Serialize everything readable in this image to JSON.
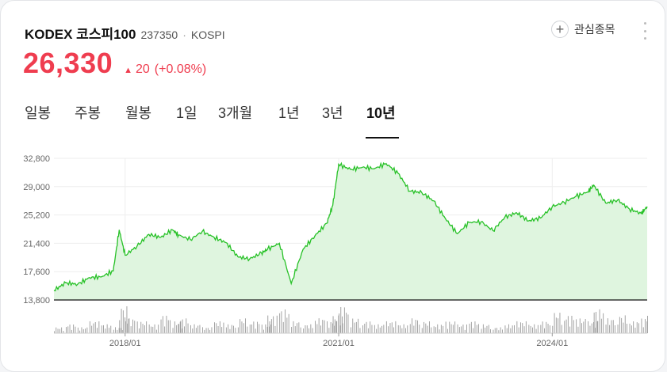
{
  "stock": {
    "name": "KODEX 코스피100",
    "code": "237350",
    "separator": "·",
    "market": "KOSPI",
    "watch_label": "관심종목",
    "price": "26,330",
    "change_arrow": "▲",
    "change": "20",
    "change_pct": "(+0.08%)",
    "up_color": "#ef3d4f"
  },
  "icons": {
    "watch": "plus-circle-icon",
    "more": "more-vertical-icon"
  },
  "tabs": [
    "일봉",
    "주봉",
    "월봉",
    "1일",
    "3개월",
    "1년",
    "3년",
    "10년"
  ],
  "active_tab": "10년",
  "chart_data": {
    "type": "area",
    "x_ticks": [
      "2018/01",
      "2021/01",
      "2024/01"
    ],
    "y_ticks": [
      "32,800",
      "29,000",
      "25,200",
      "21,400",
      "17,600",
      "13,800"
    ],
    "ylim": [
      13800,
      32800
    ],
    "x_range": [
      "2017-01",
      "2025-05"
    ],
    "line_color": "#27c127",
    "fill_color": "#dff5df",
    "series": [
      {
        "x": [
          "2017-01",
          "2017-03",
          "2017-05",
          "2017-07",
          "2017-09",
          "2017-11",
          "2017-12",
          "2018-01",
          "2018-03",
          "2018-05",
          "2018-07",
          "2018-09",
          "2018-10",
          "2018-12",
          "2019-02",
          "2019-04",
          "2019-06",
          "2019-08",
          "2019-10",
          "2019-12",
          "2020-01",
          "2020-03",
          "2020-05",
          "2020-07",
          "2020-09",
          "2020-11",
          "2020-12",
          "2021-01",
          "2021-03",
          "2021-05",
          "2021-07",
          "2021-09",
          "2021-11",
          "2022-01",
          "2022-03",
          "2022-05",
          "2022-07",
          "2022-09",
          "2022-11",
          "2023-01",
          "2023-03",
          "2023-05",
          "2023-07",
          "2023-09",
          "2023-11",
          "2024-01",
          "2024-03",
          "2024-05",
          "2024-07",
          "2024-08",
          "2024-10",
          "2024-12",
          "2025-02",
          "2025-04",
          "2025-05"
        ],
        "values": [
          15100,
          16100,
          15900,
          16800,
          16900,
          17700,
          23200,
          19800,
          21000,
          22600,
          22200,
          23200,
          22500,
          21900,
          23000,
          22200,
          21500,
          19600,
          19300,
          20100,
          20600,
          21400,
          16000,
          20600,
          22400,
          24100,
          26500,
          32000,
          31300,
          31600,
          31400,
          32100,
          30800,
          28400,
          28200,
          27100,
          24700,
          22700,
          24200,
          24300,
          23100,
          24900,
          25500,
          24400,
          24800,
          26300,
          26900,
          27700,
          28300,
          29200,
          26800,
          27200,
          26000,
          25400,
          26330
        ]
      }
    ],
    "volume": [
      2,
      3,
      2,
      4,
      3,
      2,
      9,
      5,
      4,
      3,
      6,
      4,
      5,
      3,
      2,
      4,
      3,
      5,
      4,
      3,
      6,
      8,
      4,
      3,
      5,
      4,
      6,
      9,
      5,
      4,
      3,
      4,
      3,
      5,
      4,
      3,
      4,
      3,
      4,
      3,
      2,
      3,
      4,
      3,
      4,
      7,
      6,
      5,
      4,
      8,
      5,
      6,
      4,
      5,
      6
    ]
  }
}
